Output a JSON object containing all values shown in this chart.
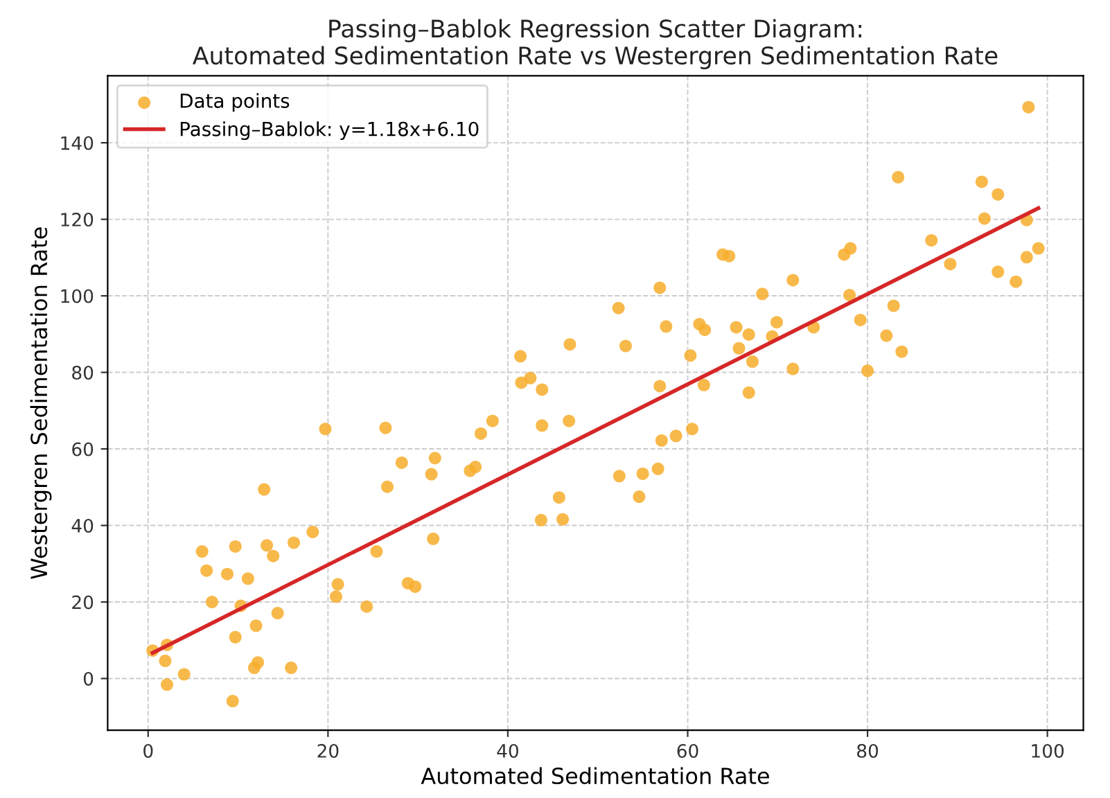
{
  "chart_data": {
    "type": "scatter",
    "title": "Passing–Bablok Regression Scatter Diagram:\nAutomated Sedimentation Rate vs Westergren Sedimentation Rate",
    "xlabel": "Automated Sedimentation Rate",
    "ylabel": "Westergren Sedimentation Rate",
    "xlim": [
      -4.5,
      104
    ],
    "ylim": [
      -13.5,
      157.5
    ],
    "xticks": [
      0,
      20,
      40,
      60,
      80,
      100
    ],
    "yticks": [
      0,
      20,
      40,
      60,
      80,
      100,
      120,
      140
    ],
    "grid": true,
    "legend": "top left",
    "marker": "circle",
    "series": [
      {
        "name": "Data points",
        "color": "#f7ad2c",
        "x": [
          19.7,
          26.4,
          38.3,
          37.0,
          43.8,
          46.8,
          28.2,
          31.9,
          31.5,
          35.8,
          36.4,
          26.6,
          12.9,
          45.7,
          43.7,
          46.1,
          18.3,
          16.2,
          13.2,
          9.7,
          6.0,
          13.9,
          25.4,
          31.7,
          6.5,
          8.8,
          11.1,
          21.1,
          28.9,
          29.7,
          7.1,
          10.3,
          20.9,
          24.3,
          14.4,
          12.0,
          9.7,
          2.1,
          0.5,
          1.9,
          4.0,
          2.1,
          12.2,
          11.8,
          15.9,
          9.4,
          41.4,
          46.9,
          41.5,
          42.5,
          43.8,
          97.9,
          83.4,
          92.7,
          94.5,
          93.0,
          97.7,
          99.0,
          97.7,
          87.1,
          89.2,
          94.5,
          96.5,
          77.4,
          78.1,
          63.9,
          64.6,
          71.7,
          68.3,
          78.0,
          82.9,
          56.9,
          52.3,
          53.1,
          57.6,
          61.3,
          61.9,
          65.4,
          66.8,
          69.9,
          69.4,
          74.0,
          79.2,
          82.1,
          83.8,
          80.0,
          65.7,
          67.2,
          60.3,
          71.7,
          61.8,
          56.9,
          66.8,
          60.5,
          58.7,
          57.1,
          52.4,
          55.0,
          56.7,
          54.6
        ],
        "values": [
          65.2,
          65.5,
          67.3,
          64.0,
          66.1,
          67.3,
          56.4,
          57.6,
          53.4,
          54.3,
          55.3,
          50.1,
          49.4,
          47.3,
          41.4,
          41.6,
          38.3,
          35.5,
          34.8,
          34.5,
          33.2,
          32.0,
          33.2,
          36.5,
          28.2,
          27.3,
          26.1,
          24.6,
          24.9,
          24.0,
          20.0,
          19.0,
          21.4,
          18.8,
          17.1,
          13.8,
          10.8,
          8.8,
          7.3,
          4.6,
          1.1,
          -1.6,
          4.2,
          2.8,
          2.8,
          -5.9,
          84.2,
          87.3,
          77.3,
          78.5,
          75.5,
          149.3,
          131.0,
          129.8,
          126.5,
          120.2,
          119.8,
          112.4,
          110.1,
          114.5,
          108.3,
          106.3,
          103.7,
          110.8,
          112.4,
          110.8,
          110.4,
          104.1,
          100.5,
          100.2,
          97.4,
          102.1,
          96.8,
          86.9,
          92.0,
          92.6,
          91.1,
          91.8,
          89.9,
          93.1,
          89.4,
          91.8,
          93.7,
          89.6,
          85.4,
          80.4,
          86.3,
          82.8,
          84.4,
          80.9,
          76.7,
          76.4,
          74.7,
          65.2,
          63.4,
          62.2,
          52.9,
          53.5,
          54.8,
          47.5
        ]
      },
      {
        "name": "Passing–Bablok: y=1.18x+6.10",
        "type": "line",
        "color": "#d62728",
        "marker": "none",
        "line_style": "solid",
        "x": [
          0.5,
          99.0
        ],
        "values": [
          6.7,
          122.9
        ]
      }
    ]
  }
}
